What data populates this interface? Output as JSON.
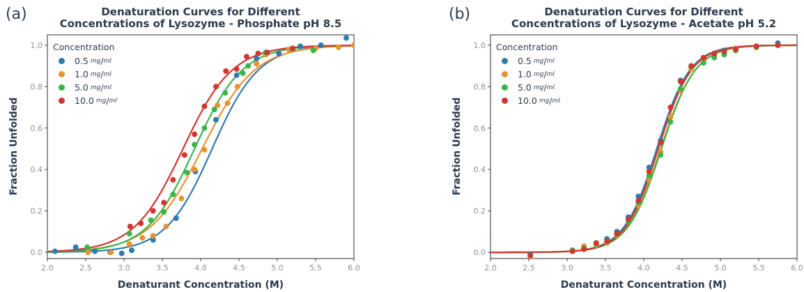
{
  "chart_data": [
    {
      "type": "scatter",
      "panel_label": "(a)",
      "title_lines": [
        "Denaturation Curves for Different",
        "Concentrations of Lysozyme - Phosphate pH 8.5"
      ],
      "xlabel": "Denaturant Concentration (M)",
      "ylabel": "Fraction Unfolded",
      "xlim": [
        2.0,
        6.0
      ],
      "ylim": [
        -0.03,
        1.05
      ],
      "xticks": [
        "2.0",
        "2.5",
        "3.0",
        "3.5",
        "4.0",
        "4.5",
        "5.0",
        "5.5",
        "6.0"
      ],
      "yticks": [
        "0.0",
        "0.2",
        "0.4",
        "0.6",
        "0.8",
        "1.0"
      ],
      "legend": {
        "title": "Concentration",
        "position": "top-left"
      },
      "series": [
        {
          "name": "0.5",
          "unit_num": "mg",
          "unit_den": "ml",
          "color": "#2f7bb0",
          "midpoint": 4.15,
          "slope": 3.3,
          "points": [
            [
              2.1,
              0.005
            ],
            [
              2.37,
              0.025
            ],
            [
              2.62,
              0.005
            ],
            [
              2.82,
              0.0
            ],
            [
              2.97,
              -0.005
            ],
            [
              3.1,
              0.01
            ],
            [
              3.38,
              0.06
            ],
            [
              3.68,
              0.165
            ],
            [
              3.93,
              0.39
            ],
            [
              4.2,
              0.64
            ],
            [
              4.47,
              0.855
            ],
            [
              4.73,
              0.935
            ],
            [
              5.02,
              0.96
            ],
            [
              5.3,
              0.995
            ],
            [
              5.57,
              1.0
            ],
            [
              5.9,
              1.035
            ]
          ]
        },
        {
          "name": "1.0",
          "unit_num": "mg",
          "unit_den": "ml",
          "color": "#e8922e",
          "midpoint": 4.02,
          "slope": 2.9,
          "points": [
            [
              2.53,
              0.0
            ],
            [
              2.83,
              0.0
            ],
            [
              3.07,
              0.04
            ],
            [
              3.24,
              0.07
            ],
            [
              3.38,
              0.08
            ],
            [
              3.55,
              0.125
            ],
            [
              3.75,
              0.26
            ],
            [
              3.92,
              0.4
            ],
            [
              4.05,
              0.495
            ],
            [
              4.22,
              0.71
            ],
            [
              4.35,
              0.72
            ],
            [
              4.48,
              0.8
            ],
            [
              4.73,
              0.91
            ],
            [
              4.85,
              0.955
            ],
            [
              5.15,
              0.98
            ],
            [
              5.5,
              0.985
            ],
            [
              5.8,
              0.99
            ],
            [
              6.0,
              1.0
            ]
          ]
        },
        {
          "name": "5.0",
          "unit_num": "mg",
          "unit_den": "ml",
          "color": "#3bb54a",
          "midpoint": 3.92,
          "slope": 3.2,
          "points": [
            [
              2.52,
              0.025
            ],
            [
              3.07,
              0.09
            ],
            [
              3.35,
              0.155
            ],
            [
              3.52,
              0.195
            ],
            [
              3.64,
              0.28
            ],
            [
              3.82,
              0.385
            ],
            [
              3.92,
              0.52
            ],
            [
              4.05,
              0.6
            ],
            [
              4.18,
              0.69
            ],
            [
              4.32,
              0.77
            ],
            [
              4.55,
              0.865
            ],
            [
              4.62,
              0.9
            ],
            [
              4.85,
              0.965
            ],
            [
              5.2,
              0.98
            ],
            [
              5.47,
              0.975
            ]
          ]
        },
        {
          "name": "10.0",
          "unit_num": "mg",
          "unit_den": "ml",
          "color": "#d1362f",
          "midpoint": 3.77,
          "slope": 3.1,
          "points": [
            [
              3.08,
              0.125
            ],
            [
              3.22,
              0.14
            ],
            [
              3.38,
              0.2
            ],
            [
              3.52,
              0.24
            ],
            [
              3.64,
              0.35
            ],
            [
              3.79,
              0.47
            ],
            [
              3.92,
              0.57
            ],
            [
              4.05,
              0.705
            ],
            [
              4.2,
              0.8
            ],
            [
              4.33,
              0.875
            ],
            [
              4.47,
              0.885
            ],
            [
              4.6,
              0.945
            ],
            [
              4.75,
              0.96
            ],
            [
              4.87,
              0.965
            ],
            [
              5.2,
              0.985
            ]
          ]
        }
      ]
    },
    {
      "type": "scatter",
      "panel_label": "(b)",
      "title_lines": [
        "Denaturation Curves for Different",
        "Concentrations of Lysozyme - Acetate pH 5.2"
      ],
      "xlabel": "Denaturant Concentration (M)",
      "ylabel": "Fraction Unfolded",
      "xlim": [
        2.0,
        6.0
      ],
      "ylim": [
        -0.03,
        1.05
      ],
      "xticks": [
        "2.0",
        "2.5",
        "3.0",
        "3.5",
        "4.0",
        "4.5",
        "5.0",
        "5.5",
        "6.0"
      ],
      "yticks": [
        "0.0",
        "0.2",
        "0.4",
        "0.6",
        "0.8",
        "1.0"
      ],
      "legend": {
        "title": "Concentration",
        "position": "top-left"
      },
      "series": [
        {
          "name": "0.5",
          "unit_num": "mg",
          "unit_den": "ml",
          "color": "#2f7bb0",
          "midpoint": 4.17,
          "slope": 4.6,
          "points": [
            [
              2.52,
              -0.01
            ],
            [
              3.07,
              0.01
            ],
            [
              3.22,
              0.02
            ],
            [
              3.38,
              0.045
            ],
            [
              3.52,
              0.065
            ],
            [
              3.65,
              0.1
            ],
            [
              3.8,
              0.17
            ],
            [
              3.93,
              0.27
            ],
            [
              4.07,
              0.41
            ],
            [
              4.22,
              0.54
            ],
            [
              4.35,
              0.7
            ],
            [
              4.48,
              0.83
            ],
            [
              4.62,
              0.9
            ],
            [
              4.78,
              0.94
            ],
            [
              4.92,
              0.955
            ],
            [
              5.05,
              0.975
            ],
            [
              5.2,
              0.975
            ],
            [
              5.47,
              0.995
            ],
            [
              5.75,
              1.01
            ]
          ]
        },
        {
          "name": "1.0",
          "unit_num": "mg",
          "unit_den": "ml",
          "color": "#e8922e",
          "midpoint": 4.22,
          "slope": 4.4,
          "points": [
            [
              2.52,
              -0.02
            ],
            [
              3.07,
              0.005
            ],
            [
              3.22,
              0.03
            ],
            [
              3.38,
              0.035
            ],
            [
              3.52,
              0.045
            ],
            [
              3.65,
              0.08
            ],
            [
              3.8,
              0.15
            ],
            [
              3.93,
              0.225
            ],
            [
              4.07,
              0.35
            ],
            [
              4.22,
              0.485
            ],
            [
              4.35,
              0.655
            ],
            [
              4.48,
              0.78
            ],
            [
              4.62,
              0.885
            ],
            [
              4.78,
              0.925
            ],
            [
              4.92,
              0.945
            ],
            [
              5.05,
              0.965
            ],
            [
              5.2,
              0.985
            ],
            [
              5.47,
              0.99
            ],
            [
              5.75,
              1.0
            ]
          ]
        },
        {
          "name": "5.0",
          "unit_num": "mg",
          "unit_den": "ml",
          "color": "#3bb54a",
          "midpoint": 4.23,
          "slope": 4.5,
          "points": [
            [
              2.52,
              -0.015
            ],
            [
              3.07,
              0.01
            ],
            [
              3.22,
              0.02
            ],
            [
              3.38,
              0.04
            ],
            [
              3.52,
              0.05
            ],
            [
              3.65,
              0.085
            ],
            [
              3.8,
              0.15
            ],
            [
              3.93,
              0.24
            ],
            [
              4.07,
              0.37
            ],
            [
              4.22,
              0.47
            ],
            [
              4.35,
              0.63
            ],
            [
              4.48,
              0.79
            ],
            [
              4.62,
              0.895
            ],
            [
              4.78,
              0.915
            ],
            [
              4.92,
              0.94
            ],
            [
              5.05,
              0.955
            ],
            [
              5.2,
              0.975
            ],
            [
              5.47,
              0.99
            ]
          ]
        },
        {
          "name": "10.0",
          "unit_num": "mg",
          "unit_den": "ml",
          "color": "#d1362f",
          "midpoint": 4.19,
          "slope": 4.6,
          "points": [
            [
              2.52,
              -0.015
            ],
            [
              3.07,
              0.005
            ],
            [
              3.22,
              0.015
            ],
            [
              3.38,
              0.045
            ],
            [
              3.52,
              0.055
            ],
            [
              3.65,
              0.09
            ],
            [
              3.8,
              0.16
            ],
            [
              3.93,
              0.25
            ],
            [
              4.07,
              0.39
            ],
            [
              4.22,
              0.53
            ],
            [
              4.35,
              0.7
            ],
            [
              4.48,
              0.825
            ],
            [
              4.62,
              0.9
            ],
            [
              4.78,
              0.94
            ],
            [
              4.92,
              0.96
            ],
            [
              5.05,
              0.97
            ],
            [
              5.2,
              0.98
            ],
            [
              5.47,
              0.995
            ],
            [
              5.75,
              1.0
            ]
          ]
        }
      ]
    }
  ]
}
